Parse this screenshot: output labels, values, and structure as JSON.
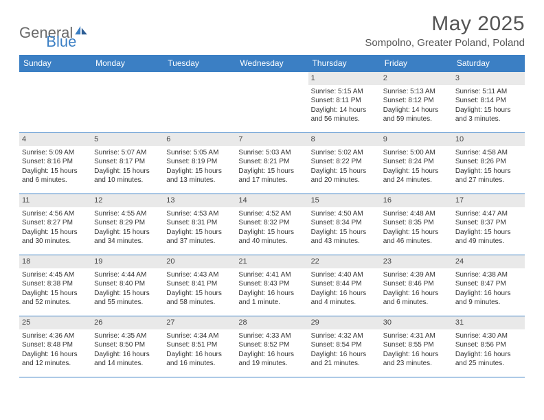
{
  "logo": {
    "text1": "General",
    "text2": "Blue"
  },
  "title": "May 2025",
  "location": "Sompolno, Greater Poland, Poland",
  "colors": {
    "header_bg": "#3b7fc4",
    "header_text": "#ffffff",
    "daynum_bg": "#e9e9e9",
    "border": "#3b7fc4"
  },
  "days_of_week": [
    "Sunday",
    "Monday",
    "Tuesday",
    "Wednesday",
    "Thursday",
    "Friday",
    "Saturday"
  ],
  "weeks": [
    [
      {
        "n": "",
        "sunrise": "",
        "sunset": "",
        "daylight": ""
      },
      {
        "n": "",
        "sunrise": "",
        "sunset": "",
        "daylight": ""
      },
      {
        "n": "",
        "sunrise": "",
        "sunset": "",
        "daylight": ""
      },
      {
        "n": "",
        "sunrise": "",
        "sunset": "",
        "daylight": ""
      },
      {
        "n": "1",
        "sunrise": "Sunrise: 5:15 AM",
        "sunset": "Sunset: 8:11 PM",
        "daylight": "Daylight: 14 hours and 56 minutes."
      },
      {
        "n": "2",
        "sunrise": "Sunrise: 5:13 AM",
        "sunset": "Sunset: 8:12 PM",
        "daylight": "Daylight: 14 hours and 59 minutes."
      },
      {
        "n": "3",
        "sunrise": "Sunrise: 5:11 AM",
        "sunset": "Sunset: 8:14 PM",
        "daylight": "Daylight: 15 hours and 3 minutes."
      }
    ],
    [
      {
        "n": "4",
        "sunrise": "Sunrise: 5:09 AM",
        "sunset": "Sunset: 8:16 PM",
        "daylight": "Daylight: 15 hours and 6 minutes."
      },
      {
        "n": "5",
        "sunrise": "Sunrise: 5:07 AM",
        "sunset": "Sunset: 8:17 PM",
        "daylight": "Daylight: 15 hours and 10 minutes."
      },
      {
        "n": "6",
        "sunrise": "Sunrise: 5:05 AM",
        "sunset": "Sunset: 8:19 PM",
        "daylight": "Daylight: 15 hours and 13 minutes."
      },
      {
        "n": "7",
        "sunrise": "Sunrise: 5:03 AM",
        "sunset": "Sunset: 8:21 PM",
        "daylight": "Daylight: 15 hours and 17 minutes."
      },
      {
        "n": "8",
        "sunrise": "Sunrise: 5:02 AM",
        "sunset": "Sunset: 8:22 PM",
        "daylight": "Daylight: 15 hours and 20 minutes."
      },
      {
        "n": "9",
        "sunrise": "Sunrise: 5:00 AM",
        "sunset": "Sunset: 8:24 PM",
        "daylight": "Daylight: 15 hours and 24 minutes."
      },
      {
        "n": "10",
        "sunrise": "Sunrise: 4:58 AM",
        "sunset": "Sunset: 8:26 PM",
        "daylight": "Daylight: 15 hours and 27 minutes."
      }
    ],
    [
      {
        "n": "11",
        "sunrise": "Sunrise: 4:56 AM",
        "sunset": "Sunset: 8:27 PM",
        "daylight": "Daylight: 15 hours and 30 minutes."
      },
      {
        "n": "12",
        "sunrise": "Sunrise: 4:55 AM",
        "sunset": "Sunset: 8:29 PM",
        "daylight": "Daylight: 15 hours and 34 minutes."
      },
      {
        "n": "13",
        "sunrise": "Sunrise: 4:53 AM",
        "sunset": "Sunset: 8:31 PM",
        "daylight": "Daylight: 15 hours and 37 minutes."
      },
      {
        "n": "14",
        "sunrise": "Sunrise: 4:52 AM",
        "sunset": "Sunset: 8:32 PM",
        "daylight": "Daylight: 15 hours and 40 minutes."
      },
      {
        "n": "15",
        "sunrise": "Sunrise: 4:50 AM",
        "sunset": "Sunset: 8:34 PM",
        "daylight": "Daylight: 15 hours and 43 minutes."
      },
      {
        "n": "16",
        "sunrise": "Sunrise: 4:48 AM",
        "sunset": "Sunset: 8:35 PM",
        "daylight": "Daylight: 15 hours and 46 minutes."
      },
      {
        "n": "17",
        "sunrise": "Sunrise: 4:47 AM",
        "sunset": "Sunset: 8:37 PM",
        "daylight": "Daylight: 15 hours and 49 minutes."
      }
    ],
    [
      {
        "n": "18",
        "sunrise": "Sunrise: 4:45 AM",
        "sunset": "Sunset: 8:38 PM",
        "daylight": "Daylight: 15 hours and 52 minutes."
      },
      {
        "n": "19",
        "sunrise": "Sunrise: 4:44 AM",
        "sunset": "Sunset: 8:40 PM",
        "daylight": "Daylight: 15 hours and 55 minutes."
      },
      {
        "n": "20",
        "sunrise": "Sunrise: 4:43 AM",
        "sunset": "Sunset: 8:41 PM",
        "daylight": "Daylight: 15 hours and 58 minutes."
      },
      {
        "n": "21",
        "sunrise": "Sunrise: 4:41 AM",
        "sunset": "Sunset: 8:43 PM",
        "daylight": "Daylight: 16 hours and 1 minute."
      },
      {
        "n": "22",
        "sunrise": "Sunrise: 4:40 AM",
        "sunset": "Sunset: 8:44 PM",
        "daylight": "Daylight: 16 hours and 4 minutes."
      },
      {
        "n": "23",
        "sunrise": "Sunrise: 4:39 AM",
        "sunset": "Sunset: 8:46 PM",
        "daylight": "Daylight: 16 hours and 6 minutes."
      },
      {
        "n": "24",
        "sunrise": "Sunrise: 4:38 AM",
        "sunset": "Sunset: 8:47 PM",
        "daylight": "Daylight: 16 hours and 9 minutes."
      }
    ],
    [
      {
        "n": "25",
        "sunrise": "Sunrise: 4:36 AM",
        "sunset": "Sunset: 8:48 PM",
        "daylight": "Daylight: 16 hours and 12 minutes."
      },
      {
        "n": "26",
        "sunrise": "Sunrise: 4:35 AM",
        "sunset": "Sunset: 8:50 PM",
        "daylight": "Daylight: 16 hours and 14 minutes."
      },
      {
        "n": "27",
        "sunrise": "Sunrise: 4:34 AM",
        "sunset": "Sunset: 8:51 PM",
        "daylight": "Daylight: 16 hours and 16 minutes."
      },
      {
        "n": "28",
        "sunrise": "Sunrise: 4:33 AM",
        "sunset": "Sunset: 8:52 PM",
        "daylight": "Daylight: 16 hours and 19 minutes."
      },
      {
        "n": "29",
        "sunrise": "Sunrise: 4:32 AM",
        "sunset": "Sunset: 8:54 PM",
        "daylight": "Daylight: 16 hours and 21 minutes."
      },
      {
        "n": "30",
        "sunrise": "Sunrise: 4:31 AM",
        "sunset": "Sunset: 8:55 PM",
        "daylight": "Daylight: 16 hours and 23 minutes."
      },
      {
        "n": "31",
        "sunrise": "Sunrise: 4:30 AM",
        "sunset": "Sunset: 8:56 PM",
        "daylight": "Daylight: 16 hours and 25 minutes."
      }
    ]
  ]
}
